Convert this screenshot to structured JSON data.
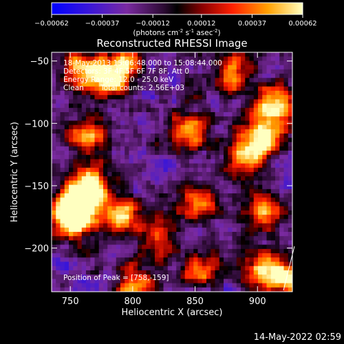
{
  "footer_timestamp": "14-May-2022 02:59",
  "chart_data": {
    "type": "heatmap",
    "title": "Reconstructed RHESSI Image",
    "xlabel": "Heliocentric X (arcsec)",
    "ylabel": "Heliocentric Y (arcsec)",
    "xlim": [
      735,
      928
    ],
    "ylim": [
      -235,
      -43
    ],
    "xticks": [
      750,
      800,
      850,
      900
    ],
    "yticks": [
      -50,
      -100,
      -150,
      -200
    ],
    "colorbar": {
      "ticks": [
        "-0.00062",
        "-0.00037",
        "-0.00012",
        "0.00012",
        "0.00037",
        "0.00062"
      ],
      "range": [
        -0.00062,
        0.00062
      ],
      "label_parts": [
        "(photons cm",
        "-2",
        " s",
        "-1",
        " asec",
        "-2",
        ")"
      ],
      "colormap": [
        "#0000ff",
        "#5a1dc8",
        "#8a2a8a",
        "#000000",
        "#8a0000",
        "#ff2000",
        "#ffb000",
        "#ffffb0"
      ]
    },
    "annotations": {
      "time_range": "18-May-2013 15:06:48.000 to 15:08:44.000",
      "detectors": "Detectors: 3F 4F 5F 6F 7F 8F, Att 0",
      "energy_range": "Energy Range: 12.0 - 25.0 keV",
      "method": "Clean",
      "total_counts": "Total counts: 2.56E+03",
      "peak_position": "Position of Peak = [758,-159]"
    },
    "hot_spots": [
      {
        "x": 755,
        "y": -165,
        "value": 0.00062
      },
      {
        "x": 765,
        "y": -150,
        "value": 0.0006
      },
      {
        "x": 752,
        "y": -178,
        "value": 0.00055
      },
      {
        "x": 790,
        "y": -172,
        "value": 0.0005
      },
      {
        "x": 915,
        "y": -85,
        "value": 0.00052
      },
      {
        "x": 905,
        "y": -110,
        "value": 0.0005
      },
      {
        "x": 890,
        "y": -128,
        "value": 0.00045
      },
      {
        "x": 760,
        "y": -55,
        "value": 0.00045
      },
      {
        "x": 780,
        "y": -65,
        "value": 0.0004
      },
      {
        "x": 765,
        "y": -110,
        "value": 0.00035
      },
      {
        "x": 845,
        "y": -105,
        "value": 0.0004
      },
      {
        "x": 850,
        "y": -165,
        "value": 0.00035
      },
      {
        "x": 905,
        "y": -215,
        "value": 0.00042
      },
      {
        "x": 925,
        "y": -225,
        "value": 0.0004
      },
      {
        "x": 800,
        "y": -228,
        "value": 0.00035
      },
      {
        "x": 855,
        "y": -218,
        "value": 0.0003
      },
      {
        "x": 820,
        "y": -190,
        "value": 0.0003
      },
      {
        "x": 880,
        "y": -60,
        "value": 0.00028
      },
      {
        "x": 905,
        "y": -170,
        "value": 0.0003
      },
      {
        "x": 795,
        "y": -50,
        "value": 0.0003
      }
    ]
  }
}
